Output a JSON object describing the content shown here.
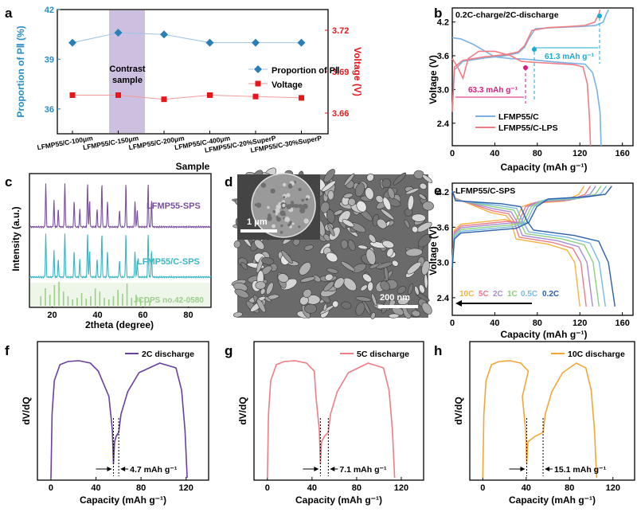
{
  "chart_data": [
    {
      "id": "a",
      "panel_label": "a",
      "type": "line",
      "xlabel": "Sample",
      "ylabel": "Proportion of PⅡ (%)",
      "y2label": "Voltage (V)",
      "categories": [
        "LFMP55/C-100μm",
        "LFMP55/C-150μm",
        "LFMP55/C-200μm",
        "LFMP55/C-400μm",
        "LFMP55/C-20%SuperP",
        "LFMP55/C-30%SuperP"
      ],
      "ylim": [
        34.5,
        42
      ],
      "yticks": [
        "36",
        "39",
        "42"
      ],
      "y2lim": [
        3.645,
        3.735
      ],
      "y2ticks": [
        "3.66",
        "3.69",
        "3.72"
      ],
      "highlight_label": [
        "Contrast",
        "sample"
      ],
      "highlight_index": 1,
      "series": [
        {
          "name": "Proportion of PⅡ",
          "axis": "left",
          "color": "#2a7fb8",
          "marker": "diamond",
          "values": [
            40.0,
            40.6,
            40.5,
            40.0,
            40.0,
            40.0
          ]
        },
        {
          "name": "Voltage",
          "axis": "right",
          "color": "#e8161a",
          "marker": "square",
          "values": [
            3.673,
            3.673,
            3.67,
            3.673,
            3.672,
            3.671
          ]
        }
      ]
    },
    {
      "id": "b",
      "panel_label": "b",
      "type": "line",
      "title": "0.2C-charge/2C-discharge",
      "xlabel": "Capacity (mAh g⁻¹)",
      "ylabel": "Voltage (V)",
      "xlim": [
        0,
        170
      ],
      "xticks": [
        "0",
        "40",
        "80",
        "120",
        "160"
      ],
      "ylim": [
        2.0,
        4.45
      ],
      "yticks": [
        "2.4",
        "3.0",
        "3.6",
        "4.2"
      ],
      "annotations": [
        "61.3 mAh g⁻¹",
        "63.3 mAh g⁻¹"
      ],
      "series": [
        {
          "name": "LFMP55/C",
          "color": "#7ab2e6",
          "values": [
            [
              0,
              3.92
            ],
            [
              8,
              3.9
            ],
            [
              20,
              3.8
            ],
            [
              40,
              3.58
            ],
            [
              55,
              3.55
            ],
            [
              70,
              3.54
            ],
            [
              90,
              3.5
            ],
            [
              110,
              3.47
            ],
            [
              125,
              3.45
            ],
            [
              132,
              3.3
            ],
            [
              136,
              3.0
            ],
            [
              139,
              2.6
            ],
            [
              140,
              2.0
            ]
          ]
        },
        {
          "name": "LFMP55/C",
          "color": "#7ab2e6",
          "values": [
            [
              0,
              2.6
            ],
            [
              2,
              3.35
            ],
            [
              10,
              3.5
            ],
            [
              30,
              3.56
            ],
            [
              50,
              3.6
            ],
            [
              62,
              3.65
            ],
            [
              68,
              3.75
            ],
            [
              72,
              3.9
            ],
            [
              78,
              4.08
            ],
            [
              95,
              4.1
            ],
            [
              120,
              4.12
            ],
            [
              135,
              4.14
            ],
            [
              142,
              4.2
            ],
            [
              145,
              4.35
            ],
            [
              147,
              4.42
            ]
          ]
        },
        {
          "name": "LFMP55/C-LPS",
          "color": "#f07c84",
          "values": [
            [
              0,
              3.55
            ],
            [
              5,
              3.4
            ],
            [
              10,
              3.2
            ],
            [
              15,
              3.55
            ],
            [
              25,
              3.68
            ],
            [
              40,
              3.68
            ],
            [
              55,
              3.6
            ],
            [
              65,
              3.5
            ],
            [
              80,
              3.48
            ],
            [
              100,
              3.46
            ],
            [
              115,
              3.44
            ],
            [
              123,
              3.4
            ],
            [
              127,
              3.1
            ],
            [
              129,
              2.5
            ],
            [
              130,
              2.0
            ]
          ]
        },
        {
          "name": "LFMP55/C-LPS",
          "color": "#f07c84",
          "values": [
            [
              0,
              2.6
            ],
            [
              2,
              3.4
            ],
            [
              10,
              3.52
            ],
            [
              30,
              3.58
            ],
            [
              50,
              3.62
            ],
            [
              62,
              3.67
            ],
            [
              68,
              3.78
            ],
            [
              75,
              4.05
            ],
            [
              90,
              4.1
            ],
            [
              110,
              4.12
            ],
            [
              125,
              4.14
            ],
            [
              134,
              4.2
            ],
            [
              138,
              4.35
            ],
            [
              139,
              4.42
            ]
          ]
        }
      ]
    },
    {
      "id": "c",
      "panel_label": "c",
      "type": "line",
      "xlabel": "2theta (degree)",
      "ylabel": "Intensity (a.u.)",
      "xlim": [
        10,
        90
      ],
      "xticks": [
        "20",
        "40",
        "60",
        "80"
      ],
      "series_labels": [
        "LFMP55-SPS",
        "LFMP55/C-SPS",
        "JCDPS no.42-0580"
      ],
      "series_colors": [
        "#7a4fa0",
        "#38b6c4",
        "#9ccf8a"
      ],
      "peaks_2theta": [
        17.2,
        20.8,
        22.7,
        25.6,
        29.7,
        32.2,
        35.6,
        36.5,
        39.8,
        41.9,
        44.4,
        49.7,
        52.5,
        56.5,
        57.5,
        62.3,
        63.8
      ]
    },
    {
      "id": "d",
      "panel_label": "d",
      "type": "image",
      "inset_scalebar": "1 μm",
      "scalebar": "200 nm"
    },
    {
      "id": "e",
      "panel_label": "e",
      "type": "line",
      "title": "LFMP55/C-SPS",
      "xlabel": "Capacity (mAh g⁻¹)",
      "ylabel": "Voltage (V)",
      "xlim": [
        0,
        170
      ],
      "xticks": [
        "0",
        "40",
        "80",
        "120",
        "160"
      ],
      "ylim": [
        2.1,
        4.35
      ],
      "yticks": [
        "2.4",
        "3.0",
        "3.6",
        "4.2"
      ],
      "rates": [
        "10C",
        "5C",
        "2C",
        "1C",
        "0.5C",
        "0.2C"
      ],
      "rate_colors": [
        "#f5b13d",
        "#f07a8a",
        "#a58cd6",
        "#8ad07d",
        "#78b9e6",
        "#2b5fa8"
      ],
      "charge_capacity": [
        124,
        130,
        135,
        140,
        145,
        150
      ],
      "discharge_capacity": [
        120,
        126,
        132,
        138,
        144,
        153
      ]
    },
    {
      "id": "f",
      "panel_label": "f",
      "type": "line",
      "legend": "2C discharge",
      "color": "#6b3fa0",
      "xlabel": "Capacity (mAh g⁻¹)",
      "ylabel": "dV/dQ",
      "xlim": [
        -12,
        140
      ],
      "xticks": [
        "0",
        "40",
        "80",
        "120"
      ],
      "gap_label": "4.7 mAh g⁻¹",
      "dip_range": [
        55.5,
        60.2
      ],
      "end_capacity": 121
    },
    {
      "id": "g",
      "panel_label": "g",
      "type": "line",
      "legend": "5C discharge",
      "color": "#f07c84",
      "xlabel": "Capacity (mAh g⁻¹)",
      "ylabel": "dV/dQ",
      "xlim": [
        -12,
        140
      ],
      "xticks": [
        "0",
        "40",
        "80",
        "120"
      ],
      "gap_label": "7.1 mAh g⁻¹",
      "dip_range": [
        47.5,
        54.6
      ],
      "end_capacity": 114
    },
    {
      "id": "h",
      "panel_label": "h",
      "type": "line",
      "legend": "10C discharge",
      "color": "#f5a536",
      "xlabel": "Capacity (mAh g⁻¹)",
      "ylabel": "dV/dQ",
      "xlim": [
        -12,
        140
      ],
      "xticks": [
        "0",
        "40",
        "80",
        "120"
      ],
      "gap_label": "15.1 mAh g⁻¹",
      "dip_range": [
        40.5,
        55.6
      ],
      "end_capacity": 105
    }
  ]
}
